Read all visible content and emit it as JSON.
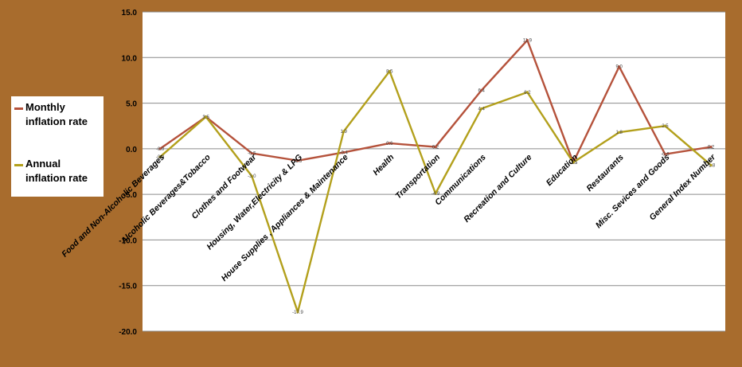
{
  "colors": {
    "background": "#a86c2d",
    "plot_area": "#ffffff",
    "gridline": "#8c8c8c",
    "monthly_series": "#b5523b",
    "annual_series": "#b3a01c"
  },
  "legend": {
    "items": [
      {
        "label": "Monthly inflation rate",
        "color": "#b5523b"
      },
      {
        "label": "Annual inflation rate",
        "color": "#b3a01c"
      }
    ]
  },
  "chart_data": {
    "type": "line",
    "title": "",
    "xlabel": "",
    "ylabel": "",
    "ylim": [
      -20,
      15
    ],
    "y_ticks": [
      "15.0",
      "10.0",
      "5.0",
      "0.0",
      "-5.0",
      "-10.0",
      "-15.0",
      "-20.0"
    ],
    "y_tick_values": [
      15,
      10,
      5,
      0,
      -5,
      -10,
      -15,
      -20
    ],
    "grid": true,
    "legend_position": "left",
    "categories": [
      "Food and Non-Alcoholic Beverages",
      "Alcoholic Beverages&Tobacco",
      "Clothes and Footwear",
      "Housing, Water,Electricity & LPG",
      "House Supplies , Appliances & Maintenance",
      "Health",
      "Transportation",
      "Communications",
      "Recreation and Culture",
      "Education",
      "Restaurants",
      "Misc. Sevices and Goods",
      "General Index Number"
    ],
    "series": [
      {
        "name": "Monthly inflation rate",
        "color": "#b5523b",
        "values": [
          0.0,
          3.5,
          -0.5,
          -1.3,
          -0.4,
          0.6,
          0.2,
          6.4,
          11.9,
          -1.5,
          9.0,
          -0.6,
          0.2
        ],
        "point_labels": [
          "-0.0",
          "3.5",
          "-0.5",
          "-1.3",
          "-0.4",
          "0.6",
          "0.2",
          "6.4",
          "11.9",
          "-1.5",
          "9.0",
          "-0.6",
          "0.2"
        ]
      },
      {
        "name": "Annual inflation rate",
        "color": "#b3a01c",
        "values": [
          -0.9,
          3.5,
          -3.0,
          -17.9,
          1.9,
          8.5,
          -4.9,
          4.4,
          6.2,
          -1.5,
          1.8,
          2.5,
          -1.8
        ],
        "point_labels": [
          "-0.9",
          "3.5",
          "-3.0",
          "-17.9",
          "1.9",
          "8.5",
          "-4.9",
          "4.4",
          "6.2",
          "-1.5",
          "1.8",
          "2.5",
          "-1.8"
        ]
      }
    ]
  }
}
